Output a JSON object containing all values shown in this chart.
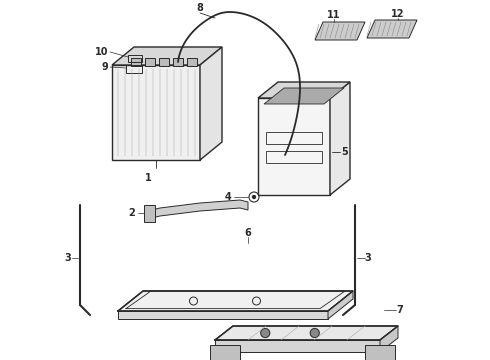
{
  "bg_color": "#ffffff",
  "line_color": "#2a2a2a",
  "line_width": 1.0,
  "fig_width": 4.9,
  "fig_height": 3.6,
  "dpi": 100,
  "label_fontsize": 7.0,
  "label_fontweight": "bold"
}
